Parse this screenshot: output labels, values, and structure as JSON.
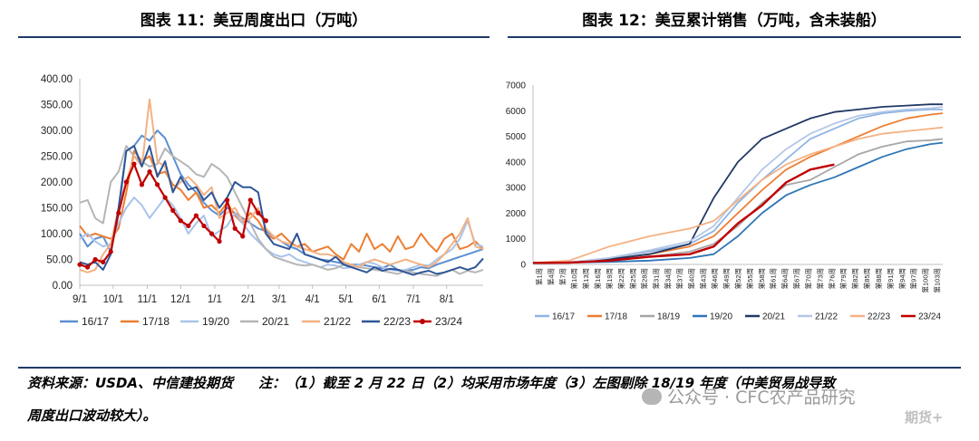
{
  "left": {
    "title": "图表 11：美豆周度出口（万吨）",
    "chart_data": {
      "type": "line",
      "y_ticks": [
        "400.00",
        "350.00",
        "300.00",
        "250.00",
        "200.00",
        "150.00",
        "100.00",
        "50.00",
        "0.00"
      ],
      "ylim": [
        0,
        400
      ],
      "x_ticks": [
        "9/1",
        "10/1",
        "11/1",
        "12/1",
        "1/1",
        "2/1",
        "3/1",
        "4/1",
        "5/1",
        "6/1",
        "7/1",
        "8/1"
      ],
      "x_tick_weeks": [
        0,
        4.3,
        8.7,
        13,
        17.4,
        21.7,
        25.7,
        30,
        34.3,
        38.6,
        43,
        47.3
      ],
      "xlim": [
        0,
        52
      ],
      "legend": [
        "16/17",
        "17/18",
        "19/20",
        "20/21",
        "21/22",
        "22/23",
        "23/24"
      ],
      "series": [
        {
          "name": "16/17",
          "color": "#5b8fd1",
          "marker": false,
          "values": [
            100,
            75,
            90,
            95,
            65,
            140,
            260,
            270,
            290,
            280,
            300,
            285,
            250,
            215,
            195,
            180,
            160,
            145,
            135,
            150,
            140,
            130,
            120,
            110,
            105,
            95,
            85,
            75,
            70,
            60,
            55,
            50,
            48,
            45,
            42,
            40,
            40,
            38,
            35,
            33,
            40,
            30,
            28,
            30,
            35,
            33,
            40,
            45,
            50,
            55,
            60,
            65,
            70
          ]
        },
        {
          "name": "17/18",
          "color": "#ed7d31",
          "marker": false,
          "values": [
            115,
            95,
            100,
            95,
            90,
            110,
            180,
            260,
            240,
            250,
            215,
            220,
            195,
            185,
            165,
            180,
            150,
            155,
            140,
            160,
            135,
            120,
            140,
            125,
            100,
            90,
            100,
            85,
            75,
            80,
            65,
            70,
            75,
            60,
            50,
            80,
            65,
            100,
            70,
            80,
            65,
            95,
            70,
            75,
            100,
            80,
            65,
            90,
            100,
            70,
            75,
            85,
            70
          ]
        },
        {
          "name": "19/20",
          "color": "#a9c4eb",
          "marker": false,
          "values": [
            90,
            100,
            85,
            75,
            80,
            120,
            150,
            170,
            155,
            130,
            150,
            170,
            155,
            130,
            100,
            120,
            135,
            95,
            105,
            115,
            140,
            120,
            100,
            85,
            70,
            60,
            55,
            60,
            50,
            45,
            40,
            35,
            40,
            38,
            33,
            35,
            40,
            45,
            42,
            35,
            30,
            28,
            30,
            35,
            40,
            38,
            50,
            60,
            70,
            90,
            125,
            80,
            75
          ]
        },
        {
          "name": "20/21",
          "color": "#b5b5b5",
          "marker": false,
          "values": [
            160,
            165,
            130,
            120,
            200,
            220,
            270,
            250,
            240,
            230,
            235,
            265,
            250,
            240,
            230,
            215,
            210,
            235,
            225,
            210,
            180,
            150,
            120,
            90,
            70,
            55,
            50,
            45,
            40,
            38,
            40,
            35,
            30,
            33,
            40,
            38,
            35,
            33,
            30,
            28,
            25,
            22,
            28,
            25,
            22,
            20,
            18,
            25,
            30,
            22,
            28,
            25,
            30
          ]
        },
        {
          "name": "21/22",
          "color": "#f4b183",
          "marker": false,
          "values": [
            30,
            25,
            30,
            60,
            80,
            150,
            200,
            250,
            230,
            360,
            240,
            230,
            185,
            200,
            210,
            195,
            175,
            190,
            130,
            140,
            150,
            125,
            130,
            150,
            110,
            95,
            85,
            80,
            75,
            70,
            65,
            60,
            60,
            55,
            45,
            40,
            35,
            45,
            50,
            45,
            40,
            45,
            50,
            45,
            40,
            35,
            45,
            60,
            80,
            100,
            130,
            75,
            70
          ]
        },
        {
          "name": "22/23",
          "color": "#2f5597",
          "marker": false,
          "values": [
            45,
            40,
            45,
            30,
            60,
            150,
            260,
            270,
            230,
            270,
            210,
            240,
            180,
            210,
            185,
            190,
            165,
            180,
            150,
            170,
            200,
            190,
            190,
            180,
            100,
            80,
            75,
            70,
            100,
            60,
            55,
            50,
            45,
            55,
            40,
            35,
            30,
            25,
            35,
            28,
            32,
            30,
            25,
            20,
            25,
            28,
            22,
            25,
            30,
            35,
            30,
            35,
            52
          ]
        },
        {
          "name": "23/24",
          "color": "#c00000",
          "marker": true,
          "values": [
            40,
            35,
            50,
            45,
            65,
            140,
            200,
            235,
            195,
            220,
            195,
            170,
            145,
            125,
            115,
            135,
            115,
            100,
            85,
            165,
            110,
            95,
            165,
            140,
            125
          ]
        }
      ]
    }
  },
  "right": {
    "title": "图表 12：美豆累计销售（万吨，含未装船）",
    "chart_data": {
      "type": "line",
      "y_ticks": [
        "7000",
        "6000",
        "5000",
        "4000",
        "3000",
        "2000",
        "1000",
        "0"
      ],
      "ylim": [
        0,
        7000
      ],
      "x_ticks": [
        "第1周",
        "第4周",
        "第7周",
        "第10周",
        "第13周",
        "第16周",
        "第19周",
        "第22周",
        "第25周",
        "第28周",
        "第31周",
        "第34周",
        "第37周",
        "第40周",
        "第43周",
        "第46周",
        "第49周",
        "第52周",
        "第55周",
        "第58周",
        "第61周",
        "第64周",
        "第67周",
        "第70周",
        "第73周",
        "第76周",
        "第79周",
        "第82周",
        "第85周",
        "第88周",
        "第91周",
        "第94周",
        "第97周",
        "第100周",
        "第103周"
      ],
      "xlim": [
        1,
        103
      ],
      "legend": [
        "16/17",
        "17/18",
        "18/19",
        "19/20",
        "20/21",
        "21/22",
        "22/23",
        "23/24"
      ],
      "series": [
        {
          "name": "16/17",
          "color": "#8eb4e3",
          "x": [
            1,
            10,
            20,
            30,
            40,
            46,
            52,
            58,
            64,
            70,
            76,
            82,
            88,
            94,
            100,
            103
          ],
          "values": [
            60,
            70,
            250,
            500,
            800,
            1300,
            2400,
            3300,
            4100,
            4900,
            5300,
            5700,
            5900,
            6000,
            6050,
            6050
          ]
        },
        {
          "name": "17/18",
          "color": "#ed7d31",
          "x": [
            1,
            10,
            20,
            30,
            40,
            46,
            52,
            58,
            64,
            70,
            76,
            82,
            88,
            94,
            100,
            103
          ],
          "values": [
            60,
            70,
            200,
            400,
            700,
            1100,
            2000,
            2900,
            3700,
            4200,
            4600,
            5000,
            5400,
            5700,
            5850,
            5900
          ]
        },
        {
          "name": "18/19",
          "color": "#a6a6a6",
          "x": [
            1,
            10,
            20,
            30,
            40,
            46,
            52,
            58,
            64,
            70,
            76,
            82,
            88,
            94,
            100,
            103
          ],
          "values": [
            60,
            70,
            150,
            300,
            500,
            800,
            1500,
            2400,
            3100,
            3300,
            3800,
            4300,
            4600,
            4800,
            4850,
            4900
          ]
        },
        {
          "name": "19/20",
          "color": "#2e75b6",
          "x": [
            1,
            10,
            20,
            30,
            40,
            46,
            52,
            58,
            64,
            70,
            76,
            82,
            88,
            94,
            100,
            103
          ],
          "values": [
            60,
            70,
            100,
            150,
            250,
            400,
            1100,
            2000,
            2700,
            3100,
            3400,
            3800,
            4200,
            4500,
            4700,
            4750
          ]
        },
        {
          "name": "20/21",
          "color": "#203864",
          "x": [
            1,
            10,
            20,
            30,
            40,
            46,
            52,
            58,
            64,
            70,
            76,
            82,
            88,
            94,
            100,
            103
          ],
          "values": [
            60,
            80,
            200,
            400,
            800,
            2600,
            4000,
            4900,
            5300,
            5700,
            5950,
            6050,
            6150,
            6200,
            6250,
            6250
          ]
        },
        {
          "name": "21/22",
          "color": "#b4c7e7",
          "x": [
            1,
            10,
            20,
            30,
            40,
            46,
            52,
            58,
            64,
            70,
            76,
            82,
            88,
            94,
            100,
            103
          ],
          "values": [
            60,
            80,
            250,
            550,
            900,
            1500,
            2600,
            3700,
            4500,
            5100,
            5500,
            5800,
            5950,
            6050,
            6100,
            6150
          ]
        },
        {
          "name": "22/23",
          "color": "#f4b183",
          "x": [
            1,
            10,
            20,
            30,
            40,
            46,
            52,
            58,
            64,
            70,
            76,
            82,
            88,
            94,
            100,
            103
          ],
          "values": [
            60,
            150,
            700,
            1100,
            1400,
            1700,
            2500,
            3300,
            3900,
            4300,
            4600,
            4900,
            5100,
            5200,
            5300,
            5350
          ]
        },
        {
          "name": "23/24",
          "color": "#c00000",
          "x": [
            1,
            10,
            20,
            30,
            40,
            46,
            52,
            58,
            64,
            70,
            76
          ],
          "values": [
            60,
            70,
            150,
            300,
            400,
            700,
            1600,
            2300,
            3200,
            3700,
            3900
          ]
        }
      ]
    }
  },
  "footer": {
    "source": "资料来源：USDA、中信建投期货",
    "note": "注：（1）截至 2 月 22 日（2）均采用市场年度（3）左图剔除 18/19 年度（中美贸易战导致",
    "note_cont": "周度出口波动较大）。",
    "watermark": "公众号 · CFC农产品研究",
    "watermark2": "期货+"
  }
}
